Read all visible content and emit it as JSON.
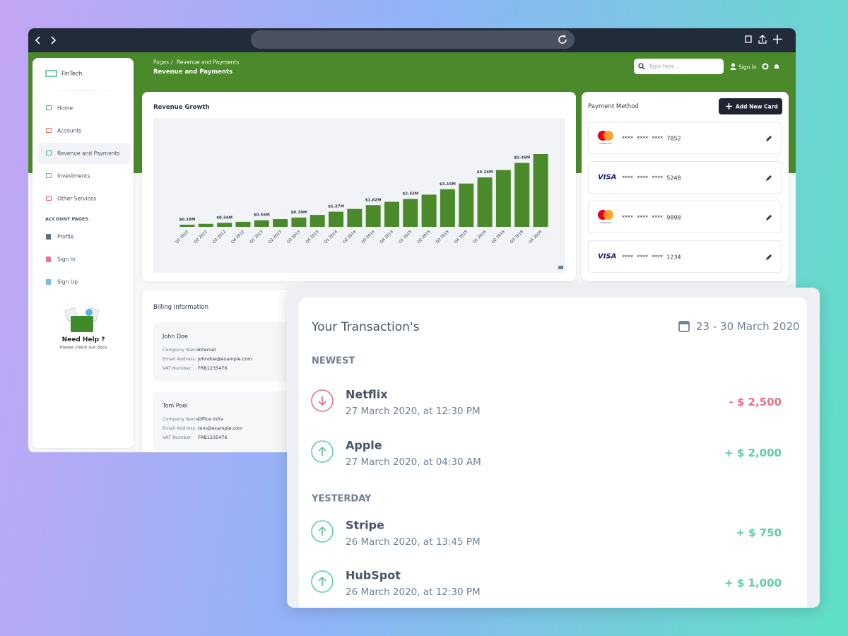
{
  "sidebar": {
    "brand": "FinTech",
    "nav": [
      "Home",
      "Accounts",
      "Revenue and Payments",
      "Investments",
      "Other Services"
    ],
    "section": "ACCOUNT PAGES",
    "account_nav": [
      "Profile",
      "Sign In",
      "Sign Up"
    ],
    "help_title": "Need Help ?",
    "help_text": "Please check our docs"
  },
  "header": {
    "breadcrumb_root": "Pages",
    "breadcrumb_separator": "/",
    "breadcrumb_current": "Revenue and Payments",
    "title": "Revenue and Payments",
    "search_placeholder": "Type here...",
    "sign_in": "Sign In"
  },
  "chart_data": {
    "type": "bar",
    "title": "Revenue Growth",
    "color": "#4a8a2a",
    "categories": [
      "Q1 2012",
      "Q2 2012",
      "Q3 2012",
      "Q4 2012",
      "Q1 2013",
      "Q2 2013",
      "Q3 2013",
      "Q4 2013",
      "Q1 2014",
      "Q2 2014",
      "Q3 2014",
      "Q4 2014",
      "Q1 2015",
      "Q2 2015",
      "Q3 2015",
      "Q4 2015",
      "Q1 2016",
      "Q2 2016",
      "Q3 2016",
      "Q4 2016"
    ],
    "values": [
      0.18,
      0.25,
      0.34,
      0.42,
      0.55,
      0.65,
      0.78,
      1.0,
      1.27,
      1.5,
      1.82,
      2.1,
      2.33,
      2.7,
      3.15,
      3.63,
      4.14,
      4.76,
      5.36,
      6.1
    ],
    "value_labels": [
      "$0.18M",
      null,
      "$0.34M",
      null,
      "$0.55M",
      null,
      "$0.78M",
      null,
      "$1.27M",
      null,
      "$1.82M",
      null,
      "$2.33M",
      null,
      "$3.15M",
      null,
      "$4.14M",
      null,
      "$5.36M",
      null
    ]
  },
  "payment": {
    "title": "Payment Method",
    "button": "Add New Card",
    "cards": [
      {
        "logo": "mastercard",
        "number": "****  ****  ****  7852"
      },
      {
        "logo": "VISA",
        "number": "****  ****  ****  5248"
      },
      {
        "logo": "mastercard",
        "number": "****  ****  ****  9898"
      },
      {
        "logo": "VISA",
        "number": "****  ****  ****  1234"
      }
    ]
  },
  "billing": {
    "title": "Billing Information",
    "entries": [
      {
        "name": "John Doe",
        "fields": [
          {
            "label": "Company Name:",
            "value": "Internet"
          },
          {
            "label": "Email Address:",
            "value": "johndoe@example.com"
          },
          {
            "label": "VAT Number:",
            "value": "FRB1235476"
          }
        ]
      },
      {
        "name": "Tom Poel",
        "fields": [
          {
            "label": "Company Name:",
            "value": "Office Infra"
          },
          {
            "label": "Email Address:",
            "value": "tom@example.com"
          },
          {
            "label": "VAT Number:",
            "value": "FRB1235476"
          }
        ]
      }
    ]
  },
  "transactions": {
    "title": "Your Transaction's",
    "date_range": "23 - 30 March 2020",
    "groups": [
      {
        "label": "NEWEST",
        "items": [
          {
            "name": "Netflix",
            "time": "27 March 2020, at 12:30 PM",
            "amount": "- $ 2,500",
            "direction": "down"
          },
          {
            "name": "Apple",
            "time": "27 March 2020, at 04:30 AM",
            "amount": "+ $ 2,000",
            "direction": "up"
          }
        ]
      },
      {
        "label": "YESTERDAY",
        "items": [
          {
            "name": "Stripe",
            "time": "26 March 2020, at 13:45 PM",
            "amount": "+ $ 750",
            "direction": "up"
          },
          {
            "name": "HubSpot",
            "time": "26 March 2020, at 12:30 PM",
            "amount": "+ $ 1,000",
            "direction": "up"
          }
        ]
      }
    ]
  }
}
